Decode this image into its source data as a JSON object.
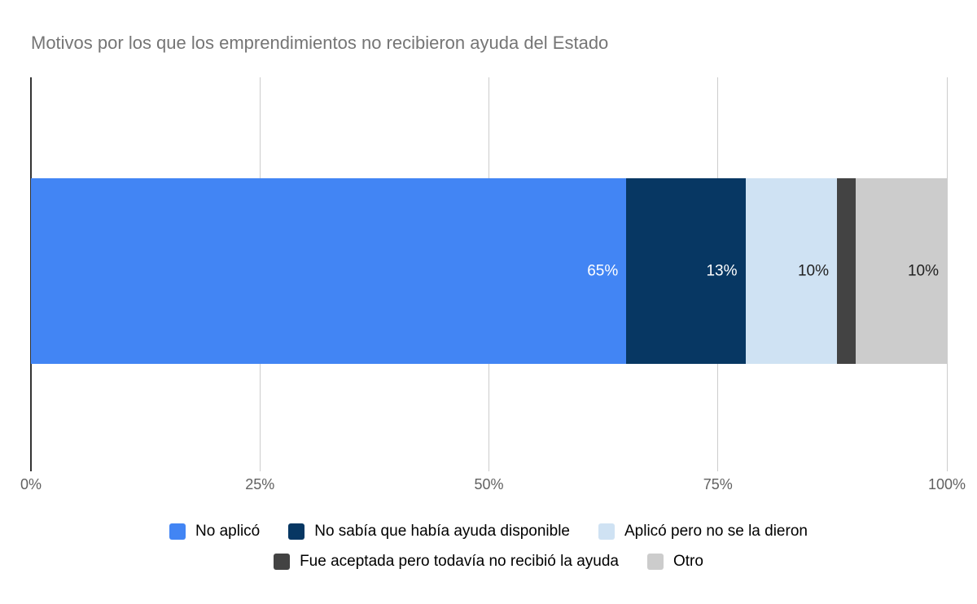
{
  "chart_data": {
    "type": "bar",
    "stacked": true,
    "orientation": "horizontal",
    "title": "Motivos por los que los emprendimientos no recibieron ayuda del Estado",
    "unit": "%",
    "series": [
      {
        "name": "No aplicó",
        "value": 65,
        "color": "#4285f4",
        "label": "65%",
        "label_color": "#ffffff",
        "show_label": true
      },
      {
        "name": "No sabía que había ayuda disponible",
        "value": 13,
        "color": "#073763",
        "label": "13%",
        "label_color": "#ffffff",
        "show_label": true
      },
      {
        "name": "Aplicó pero no se la dieron",
        "value": 10,
        "color": "#cfe2f3",
        "label": "10%",
        "label_color": "#212121",
        "show_label": true
      },
      {
        "name": "Fue aceptada pero todavía no recibió la ayuda",
        "value": 2,
        "color": "#434343",
        "label": "",
        "label_color": "#ffffff",
        "show_label": false
      },
      {
        "name": "Otro",
        "value": 10,
        "color": "#cccccc",
        "label": "10%",
        "label_color": "#212121",
        "show_label": true
      }
    ],
    "x_axis": {
      "ticks": [
        "0%",
        "25%",
        "50%",
        "75%",
        "100%"
      ],
      "values": [
        0,
        25,
        50,
        75,
        100
      ],
      "min": 0,
      "max": 100
    },
    "grid": true,
    "legend_position": "bottom",
    "legend_rows": [
      [
        0,
        1,
        2
      ],
      [
        3,
        4
      ]
    ],
    "colors": {
      "title": "#757575",
      "axis_label": "#616161",
      "gridline": "#cccccc",
      "baseline": "#333333",
      "legend_text": "#000000",
      "background": "#ffffff"
    }
  }
}
